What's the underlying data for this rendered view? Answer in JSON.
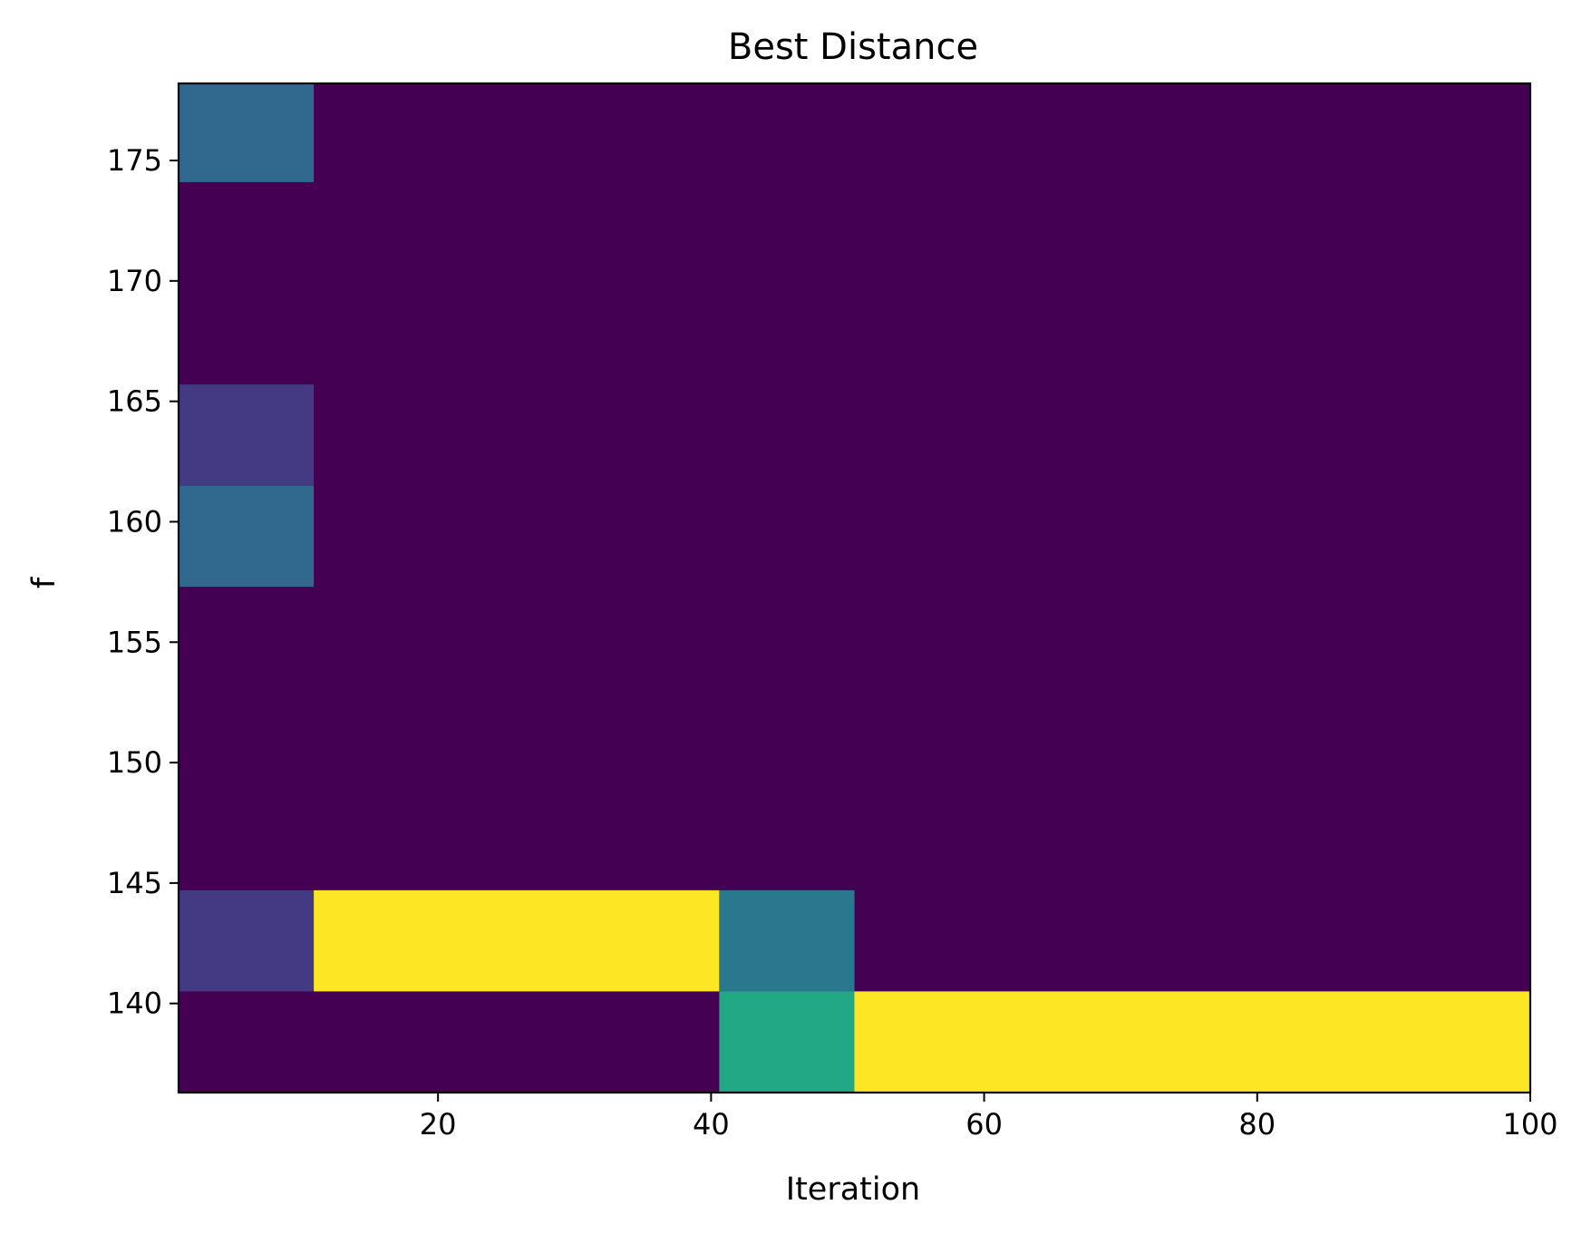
{
  "chart_data": {
    "type": "heatmap",
    "title": "Best Distance",
    "xlabel": "Iteration",
    "ylabel": "f",
    "xlim": [
      1,
      100
    ],
    "ylim": [
      136.3,
      178.2
    ],
    "x_edges": [
      1,
      10.9,
      40.6,
      50.5,
      100
    ],
    "y_edges": [
      136.3,
      140.5,
      144.7,
      157.3,
      161.5,
      165.7,
      174.1,
      178.2
    ],
    "x_ticks": [
      20,
      40,
      60,
      80,
      100
    ],
    "y_ticks": [
      140,
      145,
      150,
      155,
      160,
      165,
      170,
      175
    ],
    "colormap": "viridis",
    "value_range": [
      0,
      1
    ],
    "cells": [
      {
        "x": [
          1,
          10.9
        ],
        "y": [
          174.1,
          178.2
        ],
        "value": 0.3
      },
      {
        "x": [
          1,
          10.9
        ],
        "y": [
          157.3,
          161.5
        ],
        "value": 0.3
      },
      {
        "x": [
          1,
          10.9
        ],
        "y": [
          161.5,
          165.7
        ],
        "value": 0.15
      },
      {
        "x": [
          1,
          10.9
        ],
        "y": [
          140.5,
          144.7
        ],
        "value": 0.15
      },
      {
        "x": [
          10.9,
          40.6
        ],
        "y": [
          140.5,
          144.7
        ],
        "value": 1.0
      },
      {
        "x": [
          40.6,
          50.5
        ],
        "y": [
          140.5,
          144.7
        ],
        "value": 0.4
      },
      {
        "x": [
          40.6,
          50.5
        ],
        "y": [
          136.3,
          140.5
        ],
        "value": 0.6
      },
      {
        "x": [
          50.5,
          100
        ],
        "y": [
          136.3,
          140.5
        ],
        "value": 1.0
      }
    ],
    "background_value": 0,
    "colors": {
      "0": "#440154",
      "0.15": "#443983",
      "0.3": "#31688e",
      "0.4": "#2a788e",
      "0.6": "#22a884",
      "1.0": "#fde725"
    }
  }
}
